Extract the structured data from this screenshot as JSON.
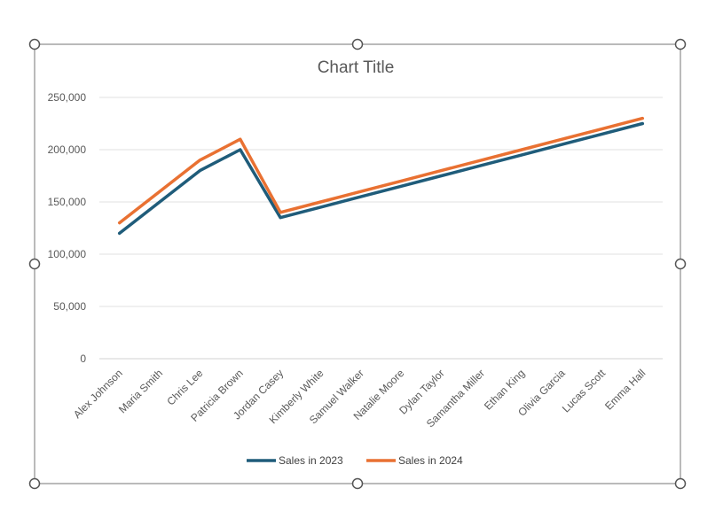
{
  "chart_data": {
    "type": "line",
    "title": "Chart Title",
    "categories": [
      "Alex Johnson",
      "Maria Smith",
      "Chris Lee",
      "Patricia Brown",
      "Jordan Casey",
      "Kimberly White",
      "Samuel Walker",
      "Natalie Moore",
      "Dylan Taylor",
      "Samantha Miller",
      "Ethan King",
      "Olivia Garcia",
      "Lucas Scott",
      "Emma Hall"
    ],
    "series": [
      {
        "name": "Sales in 2023",
        "color": "#1F5C7A",
        "values": [
          120000,
          150000,
          180000,
          200000,
          135000,
          145000,
          155000,
          165000,
          175000,
          185000,
          195000,
          205000,
          215000,
          225000
        ]
      },
      {
        "name": "Sales in 2024",
        "color": "#E97132",
        "values": [
          130000,
          160000,
          190000,
          210000,
          140000,
          150000,
          160000,
          170000,
          180000,
          190000,
          200000,
          210000,
          220000,
          230000
        ]
      }
    ],
    "ylim": [
      0,
      250000
    ],
    "yticks": [
      "0",
      "50,000",
      "100,000",
      "150,000",
      "200,000",
      "250,000"
    ],
    "ytick_values": [
      0,
      50000,
      100000,
      150000,
      200000,
      250000
    ],
    "grid": true,
    "legend": "bottom"
  }
}
